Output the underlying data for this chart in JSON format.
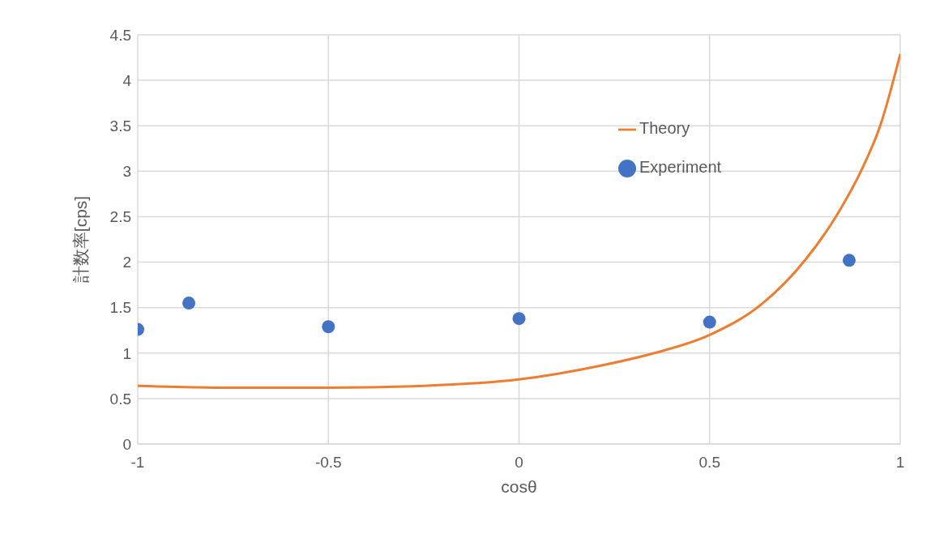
{
  "chart_data": {
    "type": "scatter",
    "xlabel": "cosθ",
    "ylabel": "計数率[cps]",
    "xlim": [
      -1,
      1
    ],
    "xticks": [
      -1,
      -0.5,
      0,
      0.5,
      1
    ],
    "ylim": [
      0,
      4.5
    ],
    "yticks": [
      0,
      0.5,
      1,
      1.5,
      2,
      2.5,
      3,
      3.5,
      4,
      4.5
    ],
    "grid": true,
    "legend": "top right",
    "series": [
      {
        "name": "Theory",
        "type": "line",
        "color": "#ed7d31",
        "marker": "none",
        "line_style": "solid",
        "x": [
          -1,
          -0.75,
          -0.5,
          -0.25,
          0,
          0.212,
          0.355,
          0.5,
          0.637,
          0.75,
          0.834,
          0.898,
          0.949,
          1
        ],
        "values": [
          0.64,
          0.62,
          0.62,
          0.64,
          0.71,
          0.86,
          1.0,
          1.2,
          1.54,
          2.02,
          2.52,
          3.01,
          3.52,
          4.29
        ]
      },
      {
        "name": "Experiment",
        "color": "#4472c4",
        "marker": "circle",
        "x": [
          -1,
          -0.866,
          -0.5,
          0,
          0.5,
          0.866
        ],
        "values": [
          1.26,
          1.55,
          1.29,
          1.38,
          1.34,
          2.02
        ]
      }
    ]
  }
}
